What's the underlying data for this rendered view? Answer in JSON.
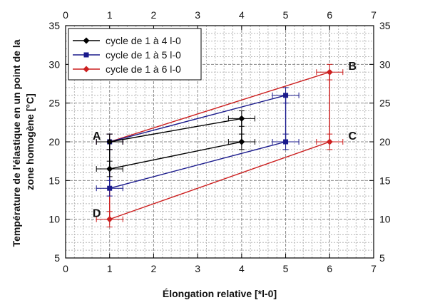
{
  "chart_data": {
    "type": "line",
    "xlabel": "Élongation relative [*l-0]",
    "ylabel_lines": [
      "Température de l'élastique en un point de la",
      "zone homogène [°C]"
    ],
    "xlim": [
      0,
      7
    ],
    "ylim": [
      5,
      35
    ],
    "x_ticks": [
      0,
      1,
      2,
      3,
      4,
      5,
      6,
      7
    ],
    "y_ticks": [
      5,
      10,
      15,
      20,
      25,
      30,
      35
    ],
    "x_minor_step": 0.2,
    "y_minor_step": 1,
    "grid": true,
    "mirror_axes": true,
    "legend_position": "top-left",
    "x_error": 0.3,
    "y_error": 1,
    "series": [
      {
        "name": "cycle de 1 à 4 l-0",
        "color": "#000000",
        "marker": "diamond",
        "x": [
          1,
          4,
          4,
          1,
          1
        ],
        "y": [
          20,
          23,
          20,
          16.5,
          20
        ]
      },
      {
        "name": "cycle de 1 à 5 l-0",
        "color": "#1a1a8c",
        "marker": "square",
        "x": [
          1,
          5,
          5,
          1,
          1
        ],
        "y": [
          20,
          26,
          20,
          14,
          20
        ]
      },
      {
        "name": "cycle de 1 à 6 l-0",
        "color": "#cc1f1f",
        "marker": "diamond",
        "x": [
          1,
          6,
          6,
          1,
          1
        ],
        "y": [
          20,
          29,
          20,
          10,
          20
        ]
      }
    ],
    "annotations": [
      {
        "text": "A",
        "x": 1,
        "y": 20,
        "side": "left"
      },
      {
        "text": "B",
        "x": 6,
        "y": 29,
        "side": "right"
      },
      {
        "text": "C",
        "x": 6,
        "y": 20,
        "side": "right"
      },
      {
        "text": "D",
        "x": 1,
        "y": 10,
        "side": "left"
      }
    ]
  }
}
